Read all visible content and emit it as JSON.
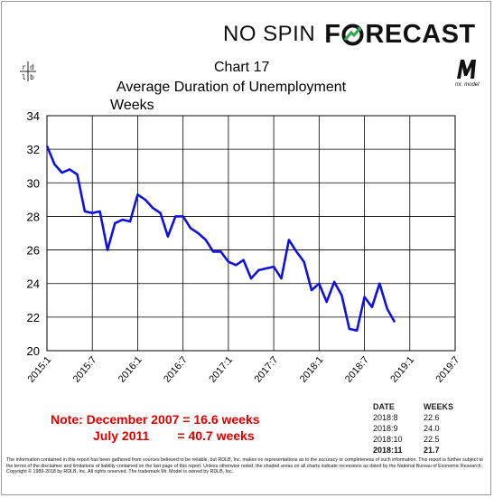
{
  "brand": {
    "nospin": "NO SPIN",
    "forecast_pre": "F",
    "forecast_post": "RECAST",
    "mark": "rdlb",
    "model_mark": "M",
    "model_sub": "mr. model"
  },
  "header": {
    "chart_no": "Chart 17",
    "title": "Average Duration of Unemployment",
    "units": "Weeks"
  },
  "note": {
    "line1": "Note: December 2007 = 16.6 weeks",
    "line2": "July 2011        = 40.7 weeks"
  },
  "table": {
    "headers": [
      "DATE",
      "WEEKS"
    ],
    "rows": [
      [
        "2018:8",
        "22.6"
      ],
      [
        "2018:9",
        "24.0"
      ],
      [
        "2018:10",
        "22.5"
      ],
      [
        "2018:11",
        "21.7"
      ]
    ]
  },
  "disclaimer": "The information contained in this report has been gathered from sources believed to be reliable, but RDLB, Inc. makes no representations as to the accuracy or completeness of such information. This report is further subject to the terms of the disclaimer and limitations of liability contained on the last page of this report. Unless otherwise noted, the shaded areas on all charts indicate recessions as dated by the National Bureau of Economic Research. Copyright © 1989-2018 by RDLB, Inc. All rights reserved. The trademark Mr. Model is owned by RDLB, Inc.",
  "colors": {
    "line": "#1010e0",
    "note": "#e00000",
    "brand_green": "#2fa84f"
  },
  "chart_data": {
    "type": "line",
    "title": "Average Duration of Unemployment",
    "ylabel": "Weeks",
    "ylim": [
      20,
      34
    ],
    "yticks": [
      20,
      22,
      24,
      26,
      28,
      30,
      32,
      34
    ],
    "xlim": [
      "2015:1",
      "2019:7"
    ],
    "xticks": [
      "2015:1",
      "2015:7",
      "2016:1",
      "2016:7",
      "2017:1",
      "2017:7",
      "2018:1",
      "2018:7",
      "2019:1",
      "2019:7"
    ],
    "grid": true,
    "series": [
      {
        "x": [
          "2015:1",
          "2015:2",
          "2015:3",
          "2015:4",
          "2015:5",
          "2015:6",
          "2015:7",
          "2015:8",
          "2015:9",
          "2015:10",
          "2015:11",
          "2015:12",
          "2016:1",
          "2016:2",
          "2016:3",
          "2016:4",
          "2016:5",
          "2016:6",
          "2016:7",
          "2016:8",
          "2016:9",
          "2016:10",
          "2016:11",
          "2016:12",
          "2017:1",
          "2017:2",
          "2017:3",
          "2017:4",
          "2017:5",
          "2017:6",
          "2017:7",
          "2017:8",
          "2017:9",
          "2017:10",
          "2017:11",
          "2017:12",
          "2018:1",
          "2018:2",
          "2018:3",
          "2018:4",
          "2018:5",
          "2018:6",
          "2018:7",
          "2018:8",
          "2018:9",
          "2018:10",
          "2018:11"
        ],
        "values": [
          32.2,
          31.1,
          30.6,
          30.8,
          30.5,
          28.3,
          28.2,
          28.3,
          26.0,
          27.6,
          27.8,
          27.7,
          29.3,
          29.0,
          28.5,
          28.2,
          26.8,
          28.0,
          28.0,
          27.3,
          27.0,
          26.6,
          25.9,
          25.9,
          25.3,
          25.1,
          25.4,
          24.3,
          24.8,
          24.9,
          25.0,
          24.3,
          26.6,
          25.9,
          25.3,
          23.6,
          24.0,
          22.9,
          24.1,
          23.3,
          21.3,
          21.2,
          23.2,
          22.6,
          24.0,
          22.5,
          21.7
        ]
      }
    ]
  }
}
